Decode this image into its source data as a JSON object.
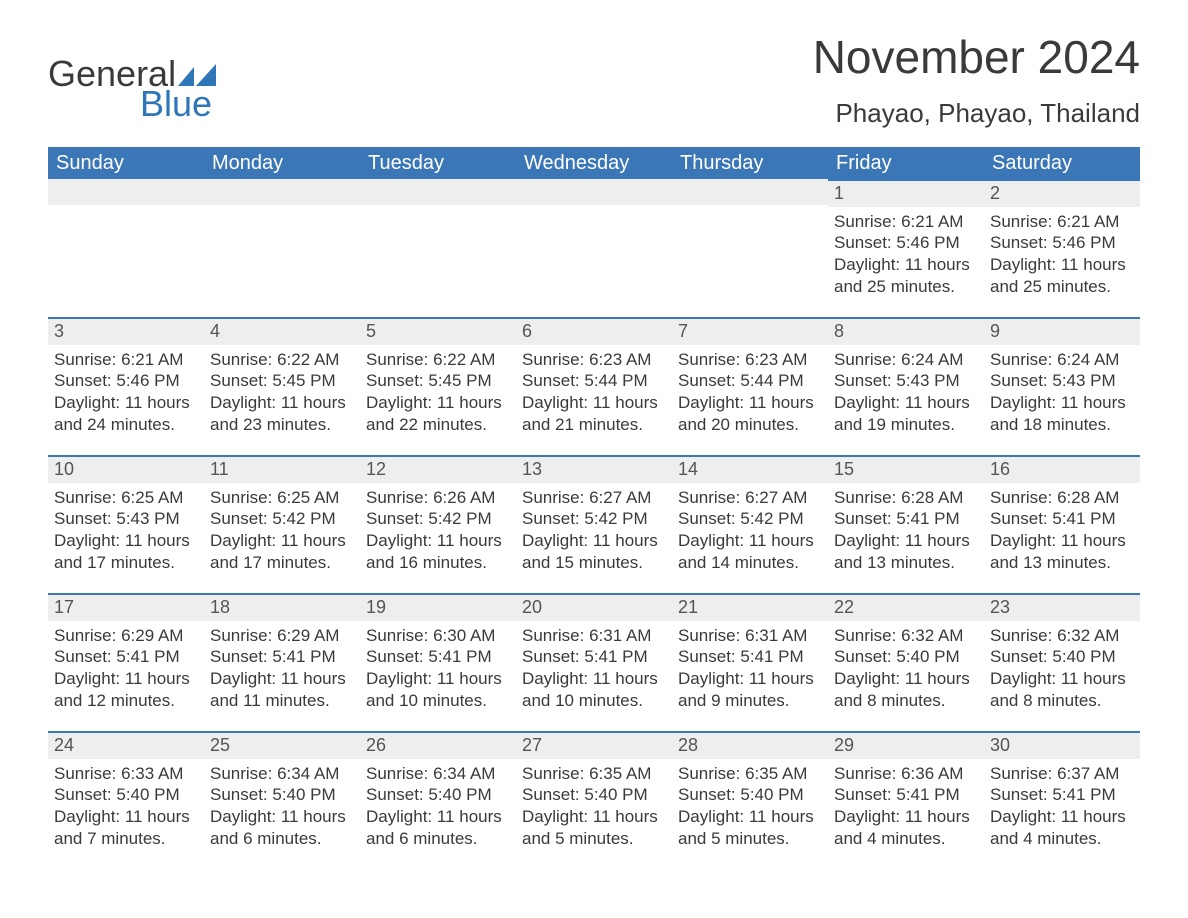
{
  "logo": {
    "text_general": "General",
    "text_blue": "Blue",
    "flag_color": "#2f76b8"
  },
  "header": {
    "month_title": "November 2024",
    "location": "Phayao, Phayao, Thailand"
  },
  "colors": {
    "header_bg": "#3b77b6",
    "header_text": "#ffffff",
    "daybar_bg": "#eeeeee",
    "daybar_border": "#3b77b6",
    "body_text": "#3a3a3a",
    "logo_blue": "#2f76b8",
    "page_bg": "#ffffff"
  },
  "day_headers": [
    "Sunday",
    "Monday",
    "Tuesday",
    "Wednesday",
    "Thursday",
    "Friday",
    "Saturday"
  ],
  "weeks": [
    [
      {
        "empty": true
      },
      {
        "empty": true
      },
      {
        "empty": true
      },
      {
        "empty": true
      },
      {
        "empty": true
      },
      {
        "day": "1",
        "sunrise": "Sunrise: 6:21 AM",
        "sunset": "Sunset: 5:46 PM",
        "daylight": "Daylight: 11 hours and 25 minutes."
      },
      {
        "day": "2",
        "sunrise": "Sunrise: 6:21 AM",
        "sunset": "Sunset: 5:46 PM",
        "daylight": "Daylight: 11 hours and 25 minutes."
      }
    ],
    [
      {
        "day": "3",
        "sunrise": "Sunrise: 6:21 AM",
        "sunset": "Sunset: 5:46 PM",
        "daylight": "Daylight: 11 hours and 24 minutes."
      },
      {
        "day": "4",
        "sunrise": "Sunrise: 6:22 AM",
        "sunset": "Sunset: 5:45 PM",
        "daylight": "Daylight: 11 hours and 23 minutes."
      },
      {
        "day": "5",
        "sunrise": "Sunrise: 6:22 AM",
        "sunset": "Sunset: 5:45 PM",
        "daylight": "Daylight: 11 hours and 22 minutes."
      },
      {
        "day": "6",
        "sunrise": "Sunrise: 6:23 AM",
        "sunset": "Sunset: 5:44 PM",
        "daylight": "Daylight: 11 hours and 21 minutes."
      },
      {
        "day": "7",
        "sunrise": "Sunrise: 6:23 AM",
        "sunset": "Sunset: 5:44 PM",
        "daylight": "Daylight: 11 hours and 20 minutes."
      },
      {
        "day": "8",
        "sunrise": "Sunrise: 6:24 AM",
        "sunset": "Sunset: 5:43 PM",
        "daylight": "Daylight: 11 hours and 19 minutes."
      },
      {
        "day": "9",
        "sunrise": "Sunrise: 6:24 AM",
        "sunset": "Sunset: 5:43 PM",
        "daylight": "Daylight: 11 hours and 18 minutes."
      }
    ],
    [
      {
        "day": "10",
        "sunrise": "Sunrise: 6:25 AM",
        "sunset": "Sunset: 5:43 PM",
        "daylight": "Daylight: 11 hours and 17 minutes."
      },
      {
        "day": "11",
        "sunrise": "Sunrise: 6:25 AM",
        "sunset": "Sunset: 5:42 PM",
        "daylight": "Daylight: 11 hours and 17 minutes."
      },
      {
        "day": "12",
        "sunrise": "Sunrise: 6:26 AM",
        "sunset": "Sunset: 5:42 PM",
        "daylight": "Daylight: 11 hours and 16 minutes."
      },
      {
        "day": "13",
        "sunrise": "Sunrise: 6:27 AM",
        "sunset": "Sunset: 5:42 PM",
        "daylight": "Daylight: 11 hours and 15 minutes."
      },
      {
        "day": "14",
        "sunrise": "Sunrise: 6:27 AM",
        "sunset": "Sunset: 5:42 PM",
        "daylight": "Daylight: 11 hours and 14 minutes."
      },
      {
        "day": "15",
        "sunrise": "Sunrise: 6:28 AM",
        "sunset": "Sunset: 5:41 PM",
        "daylight": "Daylight: 11 hours and 13 minutes."
      },
      {
        "day": "16",
        "sunrise": "Sunrise: 6:28 AM",
        "sunset": "Sunset: 5:41 PM",
        "daylight": "Daylight: 11 hours and 13 minutes."
      }
    ],
    [
      {
        "day": "17",
        "sunrise": "Sunrise: 6:29 AM",
        "sunset": "Sunset: 5:41 PM",
        "daylight": "Daylight: 11 hours and 12 minutes."
      },
      {
        "day": "18",
        "sunrise": "Sunrise: 6:29 AM",
        "sunset": "Sunset: 5:41 PM",
        "daylight": "Daylight: 11 hours and 11 minutes."
      },
      {
        "day": "19",
        "sunrise": "Sunrise: 6:30 AM",
        "sunset": "Sunset: 5:41 PM",
        "daylight": "Daylight: 11 hours and 10 minutes."
      },
      {
        "day": "20",
        "sunrise": "Sunrise: 6:31 AM",
        "sunset": "Sunset: 5:41 PM",
        "daylight": "Daylight: 11 hours and 10 minutes."
      },
      {
        "day": "21",
        "sunrise": "Sunrise: 6:31 AM",
        "sunset": "Sunset: 5:41 PM",
        "daylight": "Daylight: 11 hours and 9 minutes."
      },
      {
        "day": "22",
        "sunrise": "Sunrise: 6:32 AM",
        "sunset": "Sunset: 5:40 PM",
        "daylight": "Daylight: 11 hours and 8 minutes."
      },
      {
        "day": "23",
        "sunrise": "Sunrise: 6:32 AM",
        "sunset": "Sunset: 5:40 PM",
        "daylight": "Daylight: 11 hours and 8 minutes."
      }
    ],
    [
      {
        "day": "24",
        "sunrise": "Sunrise: 6:33 AM",
        "sunset": "Sunset: 5:40 PM",
        "daylight": "Daylight: 11 hours and 7 minutes."
      },
      {
        "day": "25",
        "sunrise": "Sunrise: 6:34 AM",
        "sunset": "Sunset: 5:40 PM",
        "daylight": "Daylight: 11 hours and 6 minutes."
      },
      {
        "day": "26",
        "sunrise": "Sunrise: 6:34 AM",
        "sunset": "Sunset: 5:40 PM",
        "daylight": "Daylight: 11 hours and 6 minutes."
      },
      {
        "day": "27",
        "sunrise": "Sunrise: 6:35 AM",
        "sunset": "Sunset: 5:40 PM",
        "daylight": "Daylight: 11 hours and 5 minutes."
      },
      {
        "day": "28",
        "sunrise": "Sunrise: 6:35 AM",
        "sunset": "Sunset: 5:40 PM",
        "daylight": "Daylight: 11 hours and 5 minutes."
      },
      {
        "day": "29",
        "sunrise": "Sunrise: 6:36 AM",
        "sunset": "Sunset: 5:41 PM",
        "daylight": "Daylight: 11 hours and 4 minutes."
      },
      {
        "day": "30",
        "sunrise": "Sunrise: 6:37 AM",
        "sunset": "Sunset: 5:41 PM",
        "daylight": "Daylight: 11 hours and 4 minutes."
      }
    ]
  ]
}
